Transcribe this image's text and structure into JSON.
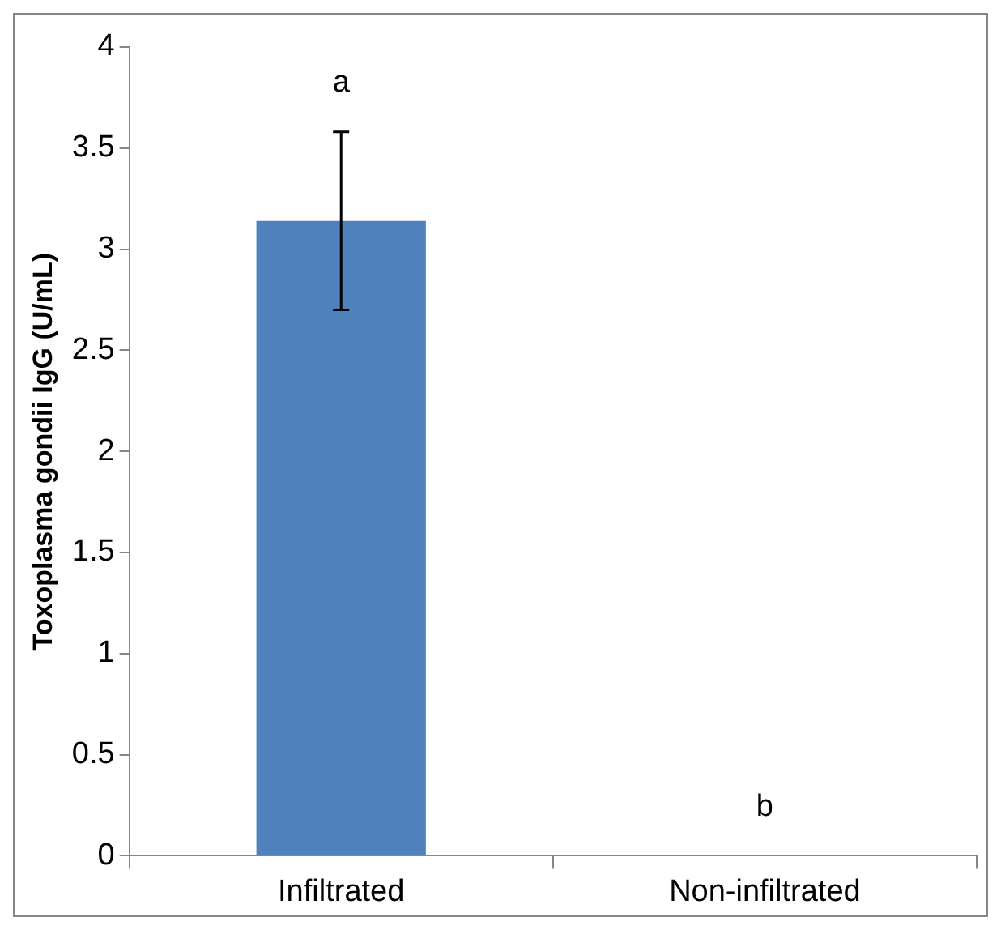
{
  "chart_data": {
    "type": "bar",
    "ylabel": "Toxoplasma gondii IgG (U/mL)",
    "categories": [
      "Infiltrated",
      "Non-infiltrated"
    ],
    "values": [
      3.14,
      0
    ],
    "errors": [
      [
        2.7,
        3.58
      ],
      null
    ],
    "color": "#4f81bd",
    "ylim": [
      0,
      4
    ],
    "yticks": [
      0,
      0.5,
      1,
      1.5,
      2,
      2.5,
      3,
      3.5,
      4
    ],
    "grid": false,
    "legend": false,
    "annotations": [
      "a",
      "b"
    ]
  }
}
